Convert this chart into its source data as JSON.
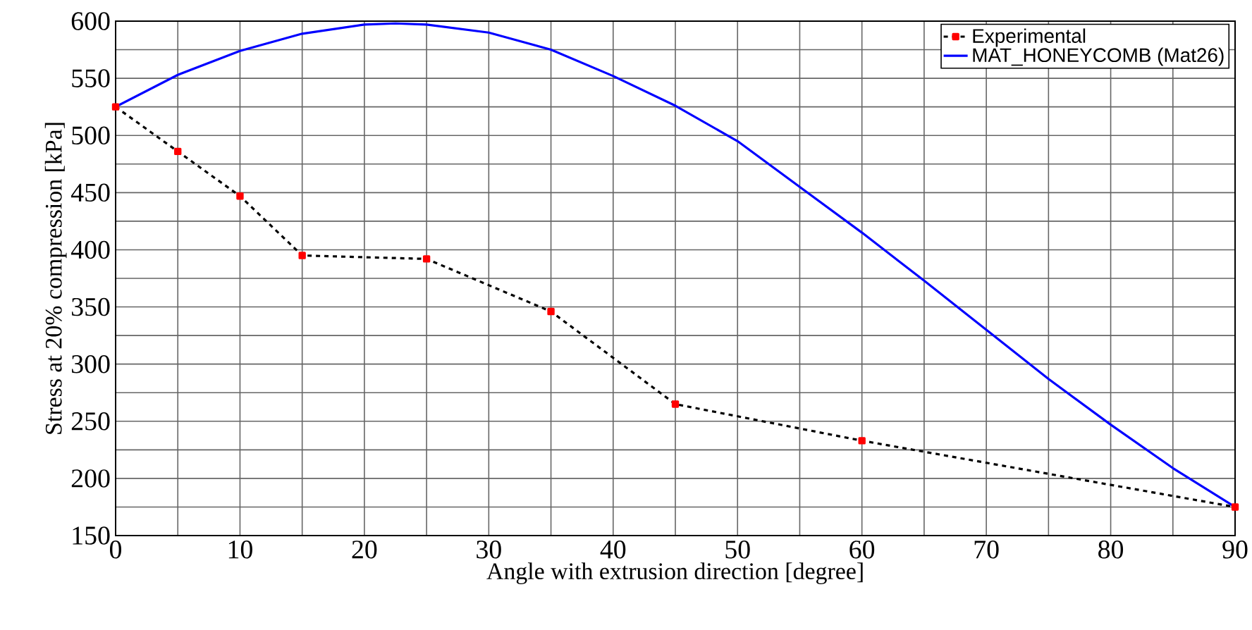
{
  "chart_data": {
    "type": "line",
    "xlabel": "Angle with extrusion direction [degree]",
    "ylabel": "Stress at 20% compression [kPa]",
    "xlim": [
      0,
      90
    ],
    "ylim": [
      150,
      600
    ],
    "xticks": [
      0,
      {
        "value": 5,
        "label": null
      },
      10,
      {
        "value": 15,
        "label": null
      },
      20,
      {
        "value": 25,
        "label": null
      },
      30,
      {
        "value": 35,
        "label": null
      },
      40,
      {
        "value": 45,
        "label": null
      },
      50,
      {
        "value": 55,
        "label": null
      },
      60,
      {
        "value": 65,
        "label": null
      },
      70,
      {
        "value": 75,
        "label": null
      },
      80,
      {
        "value": 85,
        "label": null
      },
      90
    ],
    "yticks": [
      150,
      {
        "value": 175,
        "label": null
      },
      200,
      {
        "value": 225,
        "label": null
      },
      250,
      {
        "value": 275,
        "label": null
      },
      300,
      {
        "value": 325,
        "label": null
      },
      350,
      {
        "value": 375,
        "label": null
      },
      400,
      {
        "value": 425,
        "label": null
      },
      450,
      {
        "value": 475,
        "label": null
      },
      500,
      {
        "value": 525,
        "label": null
      },
      550,
      {
        "value": 575,
        "label": null
      },
      600
    ],
    "grid": true,
    "legend": "top right",
    "series": [
      {
        "name": "Experimental",
        "color": "#000000",
        "line_style": "dashed",
        "marker": "square",
        "x": [
          0,
          5,
          10,
          15,
          25,
          35,
          45,
          60,
          90
        ],
        "values": [
          525,
          486,
          447,
          395,
          392,
          346,
          265,
          233,
          175
        ]
      },
      {
        "name": "MAT_HONEYCOMB (Mat26)",
        "color": "#0000ff",
        "line_style": "solid",
        "marker": "none",
        "x": [
          0,
          5,
          10,
          15,
          20,
          22.5,
          25,
          30,
          35,
          40,
          45,
          50,
          55,
          60,
          65,
          70,
          75,
          80,
          85,
          90
        ],
        "values": [
          525,
          553,
          574,
          589,
          597,
          598,
          597,
          590,
          575,
          552,
          526,
          495,
          455,
          415,
          373,
          330,
          287,
          247,
          209,
          175
        ]
      }
    ]
  }
}
